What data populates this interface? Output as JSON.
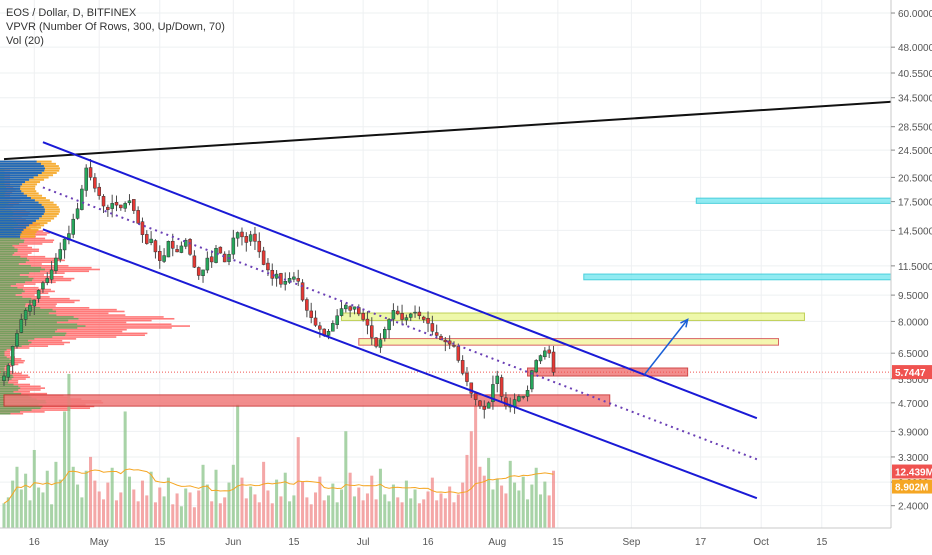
{
  "legend": {
    "symbol": "EOS / Dollar, D, BITFINEX",
    "vpvr": "VPVR (Number Of Rows, 300, Up/Down, 70)",
    "vol": "Vol (20)"
  },
  "chart_data": {
    "type": "candlestick",
    "y_axis": {
      "scale": "log",
      "range": [
        2.2,
        62
      ],
      "ticks": [
        "60.0000",
        "48.0000",
        "40.5500",
        "34.5000",
        "28.5500",
        "24.5000",
        "20.5000",
        "17.5000",
        "14.5000",
        "11.5000",
        "9.5000",
        "8.0000",
        "6.5000",
        "5.5000",
        "4.7000",
        "3.9000",
        "3.3000",
        "2.8000",
        "2.4000"
      ],
      "tick_values": [
        60,
        48,
        40.55,
        34.5,
        28.55,
        24.5,
        20.5,
        17.5,
        14.5,
        11.5,
        9.5,
        8,
        6.5,
        5.5,
        4.7,
        3.9,
        3.3,
        2.8,
        2.4
      ]
    },
    "x_axis": {
      "range": [
        "2018-04-09",
        "2018-10-31"
      ],
      "ticks": [
        {
          "label": "16",
          "date": "2018-04-16"
        },
        {
          "label": "May",
          "date": "2018-05-01"
        },
        {
          "label": "15",
          "date": "2018-05-15"
        },
        {
          "label": "Jun",
          "date": "2018-06-01"
        },
        {
          "label": "15",
          "date": "2018-06-15"
        },
        {
          "label": "Jul",
          "date": "2018-07-01"
        },
        {
          "label": "16",
          "date": "2018-07-16"
        },
        {
          "label": "Aug",
          "date": "2018-08-01"
        },
        {
          "label": "15",
          "date": "2018-08-15"
        },
        {
          "label": "Sep",
          "date": "2018-09-01"
        },
        {
          "label": "17",
          "date": "2018-09-17"
        },
        {
          "label": "Oct",
          "date": "2018-10-01"
        },
        {
          "label": "15",
          "date": "2018-10-15"
        }
      ]
    },
    "price_badges": [
      {
        "label": "5.7447",
        "value": 5.7447,
        "color": "#ef5350"
      },
      {
        "label": "12.439M",
        "value": 3.0,
        "color": "#ef5350"
      },
      {
        "label": "8.902M",
        "value": 2.72,
        "color": "#f5a623"
      }
    ],
    "last_price": 5.7447,
    "close_series": {
      "start_date": "2018-04-09",
      "closes": [
        5.6,
        6.0,
        6.8,
        7.4,
        8.1,
        8.6,
        8.9,
        9.2,
        9.8,
        10.3,
        10.6,
        11.2,
        12.1,
        12.8,
        13.7,
        14.2,
        15.6,
        16.7,
        19.0,
        21.8,
        20.5,
        19.1,
        18.2,
        17.0,
        16.6,
        17.3,
        17.1,
        16.8,
        17.3,
        17.6,
        16.5,
        15.2,
        14.1,
        13.3,
        13.7,
        12.6,
        11.9,
        12.3,
        13.5,
        12.9,
        12.6,
        13.1,
        13.6,
        12.4,
        11.4,
        10.8,
        11.2,
        12.1,
        11.8,
        12.9,
        12.5,
        11.8,
        12.4,
        13.8,
        14.3,
        13.9,
        13.4,
        14.1,
        13.5,
        12.6,
        11.6,
        11.2,
        10.6,
        10.9,
        10.2,
        10.4,
        10.6,
        10.7,
        10.4,
        9.2,
        8.6,
        8.2,
        7.8,
        7.6,
        7.3,
        7.5,
        7.9,
        8.3,
        8.7,
        8.9,
        8.6,
        8.8,
        8.4,
        8.1,
        7.8,
        7.2,
        6.8,
        7.1,
        7.6,
        8.1,
        8.6,
        8.4,
        8.1,
        8.2,
        8.4,
        8.5,
        8.3,
        8.1,
        7.9,
        7.5,
        7.3,
        7.1,
        7.0,
        6.9,
        6.8,
        6.2,
        5.7,
        5.4,
        5.0,
        4.8,
        4.6,
        4.5,
        4.7,
        5.3,
        5.6,
        4.9,
        4.6,
        4.6,
        4.8,
        4.9,
        4.9,
        5.1,
        5.8,
        6.2,
        6.4,
        6.6,
        6.5,
        5.74
      ]
    },
    "volume_max": 16,
    "volume": [
      2.5,
      3.1,
      4.8,
      6.2,
      3.9,
      5.5,
      2.8,
      7.9,
      4.1,
      3.6,
      5.8,
      2.4,
      6.7,
      4.9,
      11.8,
      15.6,
      6.2,
      4.4,
      3.1,
      5.8,
      7.2,
      4.8,
      3.7,
      2.9,
      4.6,
      6.1,
      2.8,
      3.6,
      11.8,
      5.2,
      3.9,
      2.7,
      4.8,
      3.3,
      5.7,
      2.6,
      4.1,
      3.2,
      5.1,
      2.4,
      3.5,
      2.2,
      4.0,
      3.6,
      2.1,
      3.8,
      6.4,
      4.4,
      2.7,
      5.9,
      2.5,
      3.1,
      4.6,
      6.4,
      12.5,
      5.1,
      3.0,
      4.2,
      3.4,
      2.6,
      6.7,
      3.8,
      2.5,
      4.9,
      3.2,
      5.6,
      2.7,
      3.3,
      9.2,
      4.7,
      3.1,
      2.4,
      3.6,
      5.2,
      2.8,
      3.3,
      4.5,
      2.6,
      3.9,
      9.8,
      5.6,
      3.2,
      4.1,
      2.8,
      3.5,
      5.3,
      2.9,
      6.0,
      3.4,
      2.7,
      4.4,
      3.1,
      2.6,
      4.8,
      3.0,
      3.9,
      2.5,
      2.9,
      3.7,
      5.1,
      2.8,
      3.5,
      3.0,
      4.2,
      2.6,
      3.4,
      4.6,
      7.4,
      9.8,
      12.6,
      6.2,
      5.3,
      7.1,
      3.9,
      5.0,
      4.3,
      3.5,
      6.8,
      4.6,
      3.8,
      5.2,
      2.9,
      4.4,
      6.1,
      3.4,
      4.7,
      3.3,
      5.8
    ]
  }
}
